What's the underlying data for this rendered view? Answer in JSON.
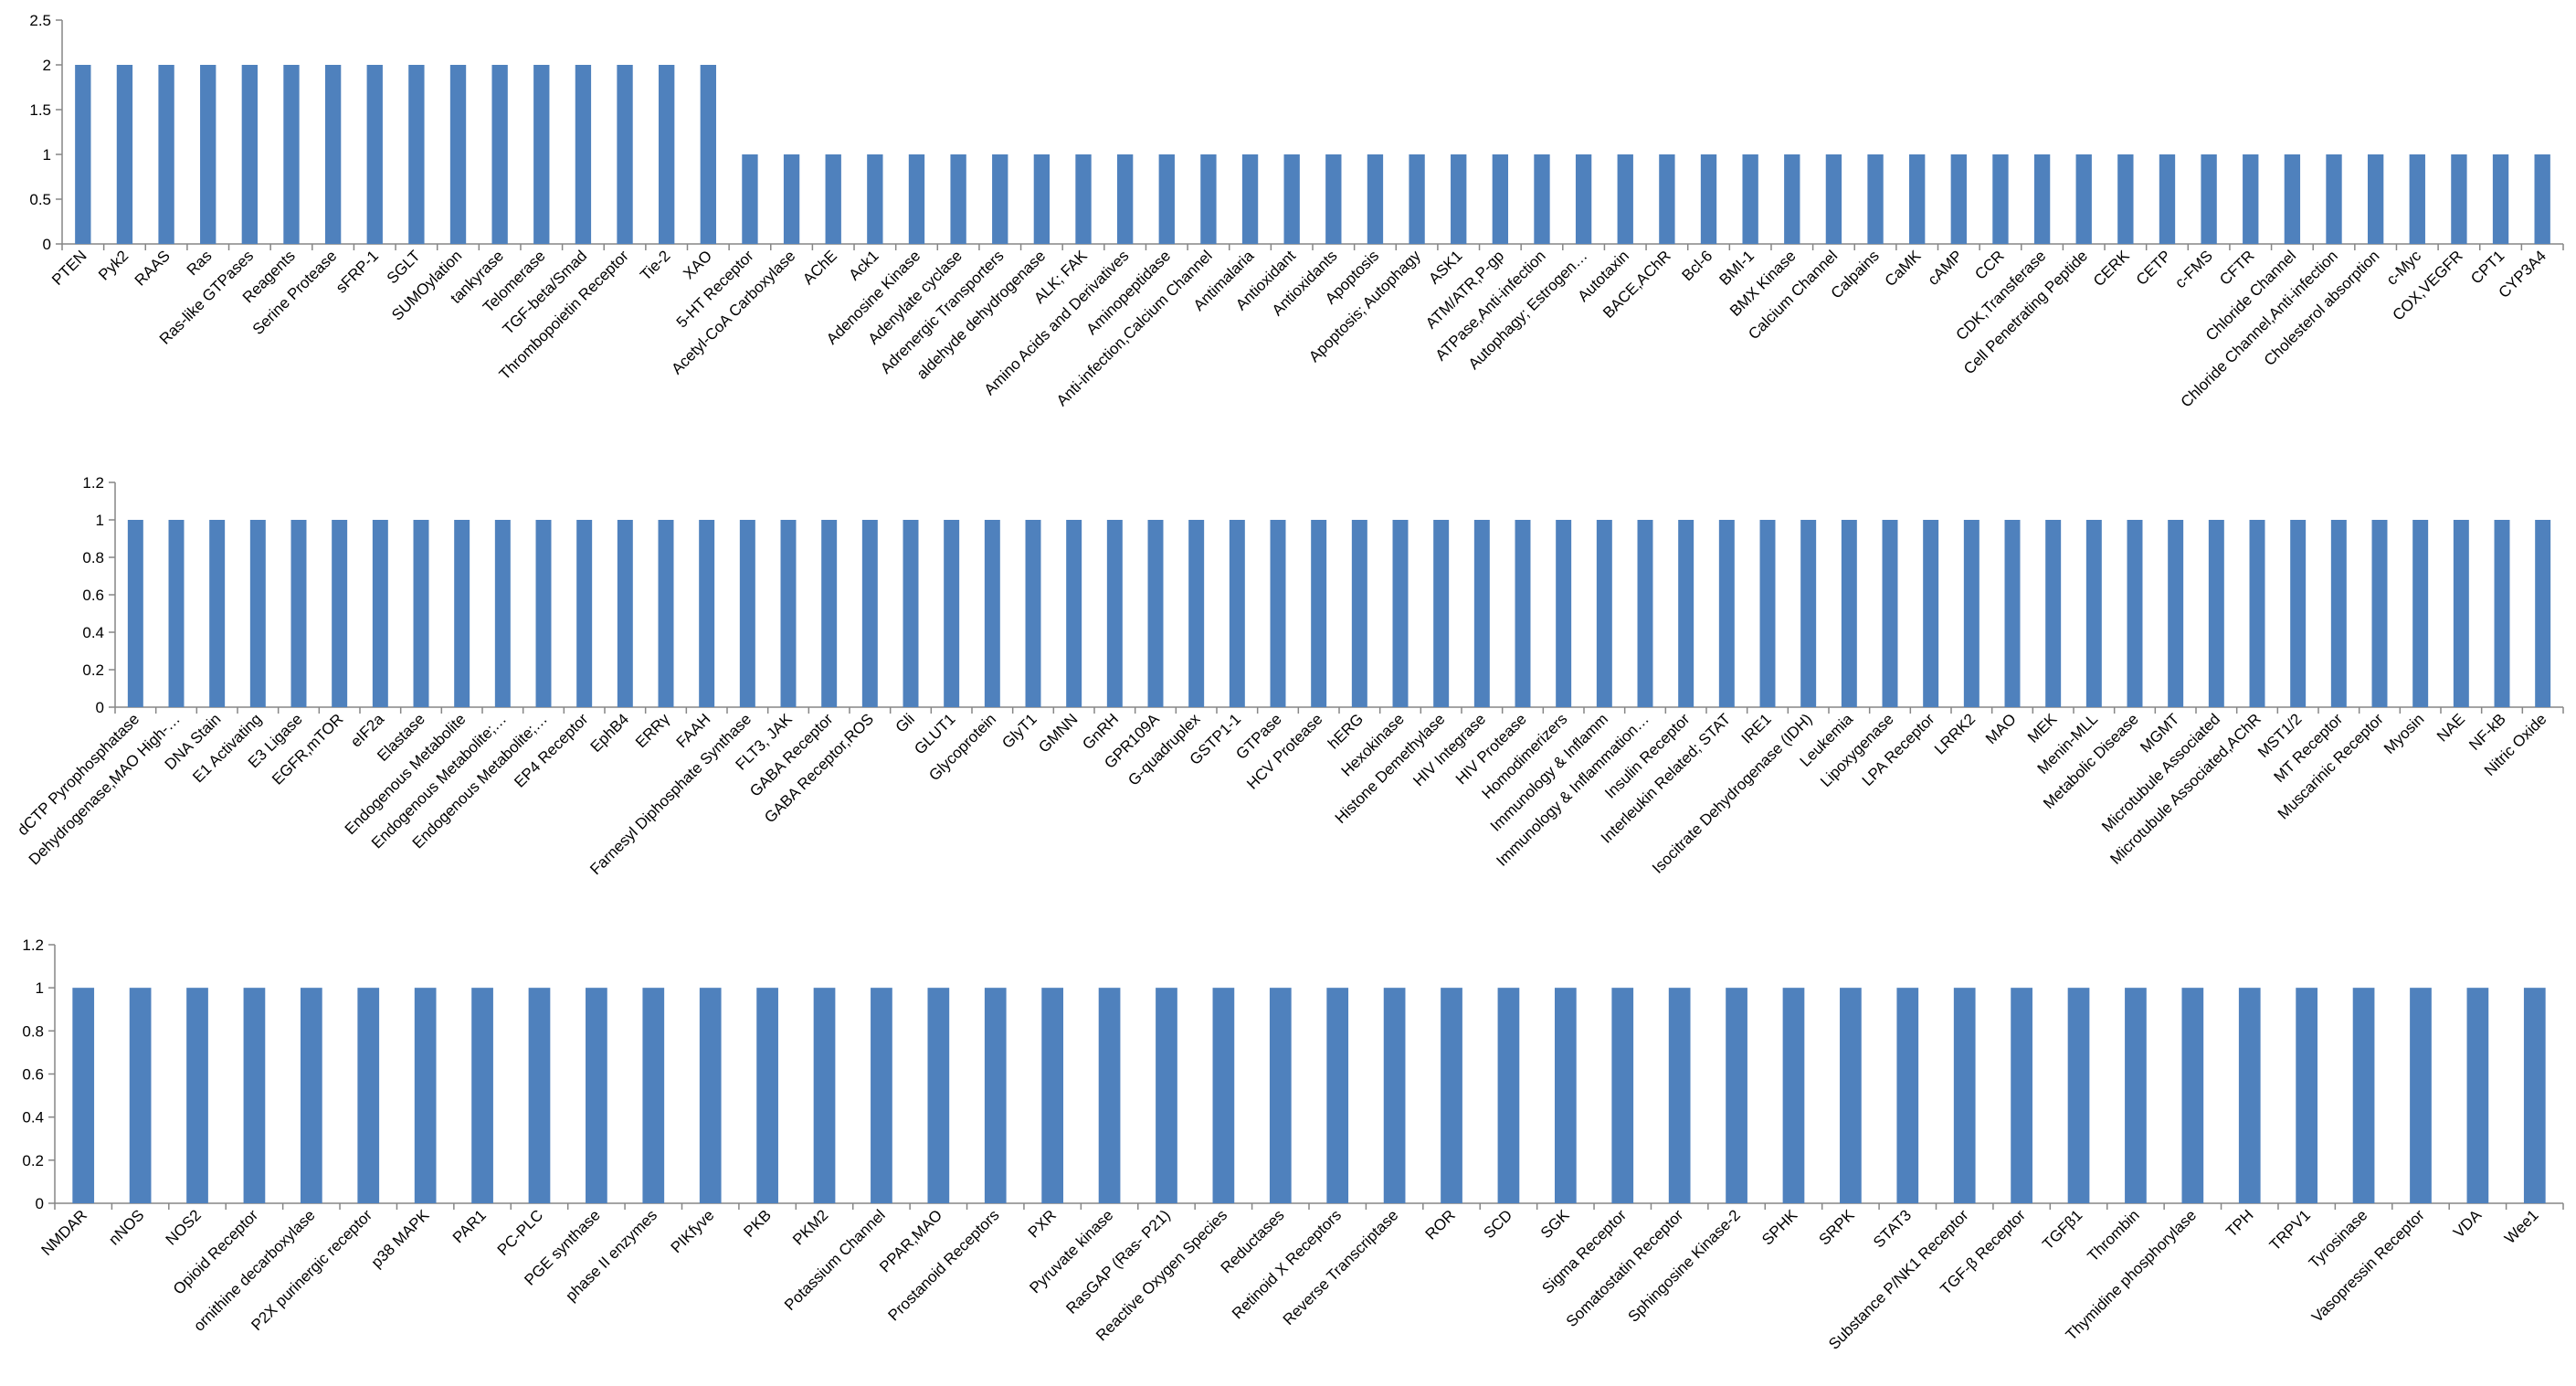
{
  "chart_data": [
    {
      "type": "bar",
      "title": "",
      "xlabel": "",
      "ylabel": "",
      "ylim": [
        0,
        2.5
      ],
      "yticks": [
        "0",
        "0.5",
        "1",
        "1.5",
        "2",
        "2.5"
      ],
      "yticks_values": [
        0,
        0.5,
        1,
        1.5,
        2,
        2.5
      ],
      "grid": false,
      "legend": "none",
      "bar_color": "#4F81BD",
      "categories": [
        "PTEN",
        "Pyk2",
        "RAAS",
        "Ras",
        "Ras-like GTPases",
        "Reagents",
        "Serine Protease",
        "sFRP-1",
        "SGLT",
        "SUMOylation",
        "tankyrase",
        "Telomerase",
        "TGF-beta/Smad",
        "Thrombopoietin Receptor",
        "Tie-2",
        "XAO",
        "5-HT Receptor",
        "Acetyl-CoA Carboxylase",
        "AChE",
        "Ack1",
        "Adenosine Kinase",
        "Adenylate cyclase",
        "Adrenergic Transporters",
        "aldehyde dehydrogenase",
        "ALK; FAK",
        "Amino Acids and Derivatives",
        "Aminopeptidase",
        "Anti-infection,Calcium Channel",
        "Antimalaria",
        "Antioxidant",
        "Antioxidants",
        "Apoptosis",
        "Apoptosis; Autophagy",
        "ASK1",
        "ATM/ATR,P-gp",
        "ATPase,Anti-infection",
        "Autophagy; Estrogen…",
        "Autotaxin",
        "BACE,AChR",
        "Bcl-6",
        "BMI-1",
        "BMX Kinase",
        "Calcium Channel",
        "Calpains",
        "CaMK",
        "cAMP",
        "CCR",
        "CDK,Transferase",
        "Cell Penetrating Peptide",
        "CERK",
        "CETP",
        "c-FMS",
        "CFTR",
        "Chloride Channel",
        "Chloride Channel,Anti-infection",
        "Cholesterol absorption",
        "c-Myc",
        "COX,VEGFR",
        "CPT1",
        "CYP3A4"
      ],
      "values": [
        2,
        2,
        2,
        2,
        2,
        2,
        2,
        2,
        2,
        2,
        2,
        2,
        2,
        2,
        2,
        2,
        1,
        1,
        1,
        1,
        1,
        1,
        1,
        1,
        1,
        1,
        1,
        1,
        1,
        1,
        1,
        1,
        1,
        1,
        1,
        1,
        1,
        1,
        1,
        1,
        1,
        1,
        1,
        1,
        1,
        1,
        1,
        1,
        1,
        1,
        1,
        1,
        1,
        1,
        1,
        1,
        1,
        1,
        1,
        1
      ]
    },
    {
      "type": "bar",
      "title": "",
      "xlabel": "",
      "ylabel": "",
      "ylim": [
        0,
        1.2
      ],
      "yticks": [
        "0",
        "0.2",
        "0.4",
        "0.6",
        "0.8",
        "1",
        "1.2"
      ],
      "yticks_values": [
        0,
        0.2,
        0.4,
        0.6,
        0.8,
        1,
        1.2
      ],
      "grid": false,
      "legend": "none",
      "bar_color": "#4F81BD",
      "categories": [
        "dCTP Pyrophosphatase",
        "Dehydrogenase,MAO High-…",
        "DNA Stain",
        "E1 Activating",
        "E3 Ligase",
        "EGFR,mTOR",
        "eIF2a",
        "Elastase",
        "Endogenous Metabolite",
        "Endogenous Metabolite;…",
        "Endogenous Metabolite;…",
        "EP4 Receptor",
        "EphB4",
        "ERRγ",
        "FAAH",
        "Farnesyl Diphosphate Synthase",
        "FLT3, JAK",
        "GABA Receptor",
        "GABA Receptor,ROS",
        "Gli",
        "GLUT1",
        "Glycoprotein",
        "GlyT1",
        "GMNN",
        "GnRH",
        "GPR109A",
        "G-quadruplex",
        "GSTP1-1",
        "GTPase",
        "HCV Protease",
        "hERG",
        "Hexokinase",
        "Histone Demethylase",
        "HIV Integrase",
        "HIV Protease",
        "Homodimerizers",
        "Immunology & Inflamm",
        "Immunology & Inflammation…",
        "Insulin Receptor",
        "Interleukin Related; STAT",
        "IRE1",
        "Isocitrate Dehydrogenase (IDH)",
        "Leukemia",
        "Lipoxygenase",
        "LPA Receptor",
        "LRRK2",
        "MAO",
        "MEK",
        "Menin-MLL",
        "Metabolic Disease",
        "MGMT",
        "Microtubule Associated",
        "Microtubule Associated,AChR",
        "MST1/2",
        "MT Receptor",
        "Muscarinic Receptor",
        "Myosin",
        "NAE",
        "NF-kB",
        "Nitric Oxide"
      ],
      "values": [
        1,
        1,
        1,
        1,
        1,
        1,
        1,
        1,
        1,
        1,
        1,
        1,
        1,
        1,
        1,
        1,
        1,
        1,
        1,
        1,
        1,
        1,
        1,
        1,
        1,
        1,
        1,
        1,
        1,
        1,
        1,
        1,
        1,
        1,
        1,
        1,
        1,
        1,
        1,
        1,
        1,
        1,
        1,
        1,
        1,
        1,
        1,
        1,
        1,
        1,
        1,
        1,
        1,
        1,
        1,
        1,
        1,
        1,
        1,
        1
      ]
    },
    {
      "type": "bar",
      "title": "",
      "xlabel": "",
      "ylabel": "",
      "ylim": [
        0,
        1.2
      ],
      "yticks": [
        "0",
        "0.2",
        "0.4",
        "0.6",
        "0.8",
        "1",
        "1.2"
      ],
      "yticks_values": [
        0,
        0.2,
        0.4,
        0.6,
        0.8,
        1,
        1.2
      ],
      "grid": false,
      "legend": "none",
      "bar_color": "#4F81BD",
      "categories": [
        "NMDAR",
        "nNOS",
        "NOS2",
        "Opioid Receptor",
        "ornithine decarboxylase",
        "P2X purinergic receptor",
        "p38 MAPK",
        "PAR1",
        "PC-PLC",
        "PGE synthase",
        "phase II enzymes",
        "PIKfyve",
        "PKB",
        "PKM2",
        "Potassium Channel",
        "PPAR,MAO",
        "Prostanoid Receptors",
        "PXR",
        "Pyruvate kinase",
        "RasGAP (Ras- P21)",
        "Reactive Oxygen Species",
        "Reductases",
        "Retinoid X Receptors",
        "Reverse Transcriptase",
        "ROR",
        "SCD",
        "SGK",
        "Sigma Receptor",
        "Somatostatin Receptor",
        "Sphingosine Kinase-2",
        "SPHK",
        "SRPK",
        "STAT3",
        "Substance P/NK1 Receptor",
        "TGF-β Receptor",
        "TGFβ1",
        "Thrombin",
        "Thymidine phosphorylase",
        "TPH",
        "TRPV1",
        "Tyrosinase",
        "Vasopressin Receptor",
        "VDA",
        "Wee1"
      ],
      "values": [
        1,
        1,
        1,
        1,
        1,
        1,
        1,
        1,
        1,
        1,
        1,
        1,
        1,
        1,
        1,
        1,
        1,
        1,
        1,
        1,
        1,
        1,
        1,
        1,
        1,
        1,
        1,
        1,
        1,
        1,
        1,
        1,
        1,
        1,
        1,
        1,
        1,
        1,
        1,
        1,
        1,
        1,
        1,
        1
      ]
    }
  ]
}
